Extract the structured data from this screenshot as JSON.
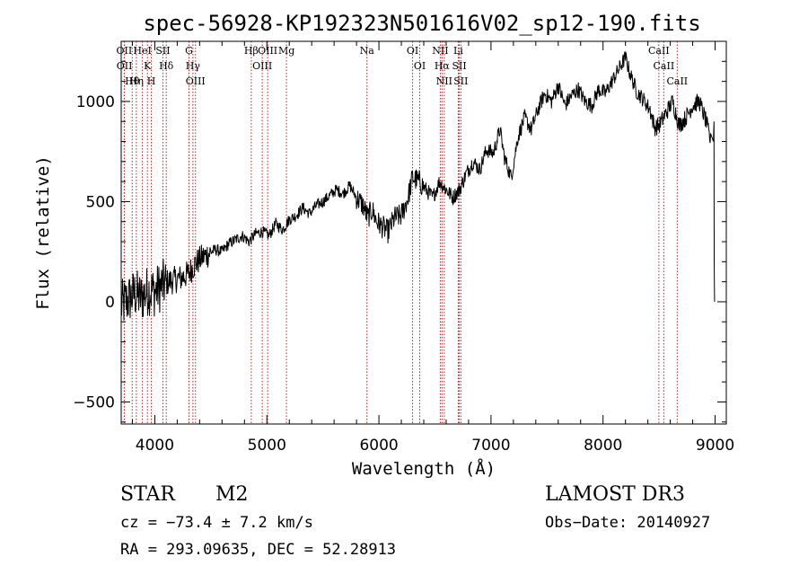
{
  "chart_data": {
    "type": "line",
    "title": "spec-56928-KP192323N501616V02_sp12-190.fits",
    "xlabel": "Wavelength (Å)",
    "ylabel": "Flux (relative)",
    "xlim": [
      3700,
      9100
    ],
    "ylim": [
      -610,
      1300
    ],
    "x_ticks": [
      4000,
      5000,
      6000,
      7000,
      8000,
      9000
    ],
    "y_ticks": [
      -500,
      0,
      500,
      1000
    ],
    "grid": false,
    "series": [
      {
        "name": "flux",
        "x": [
          3700,
          3760,
          3820,
          3880,
          3940,
          4000,
          4060,
          4120,
          4180,
          4240,
          4300,
          4360,
          4420,
          4480,
          4540,
          4600,
          4660,
          4720,
          4780,
          4840,
          4900,
          4960,
          5020,
          5080,
          5140,
          5200,
          5260,
          5320,
          5380,
          5440,
          5500,
          5560,
          5620,
          5680,
          5740,
          5800,
          5860,
          5900,
          5940,
          5980,
          6020,
          6080,
          6140,
          6200,
          6260,
          6300,
          6360,
          6420,
          6480,
          6540,
          6600,
          6660,
          6720,
          6780,
          6840,
          6900,
          6960,
          7020,
          7080,
          7120,
          7180,
          7240,
          7300,
          7360,
          7420,
          7480,
          7540,
          7600,
          7660,
          7720,
          7780,
          7840,
          7900,
          7960,
          8020,
          8080,
          8140,
          8200,
          8240,
          8300,
          8360,
          8420,
          8460,
          8500,
          8560,
          8620,
          8680,
          8740,
          8800,
          8860,
          8920,
          8960,
          9000
        ],
        "y": [
          -20,
          10,
          40,
          20,
          60,
          50,
          80,
          100,
          110,
          120,
          140,
          190,
          220,
          240,
          260,
          250,
          290,
          310,
          330,
          300,
          340,
          350,
          330,
          390,
          360,
          410,
          430,
          470,
          440,
          480,
          500,
          530,
          560,
          540,
          580,
          520,
          480,
          420,
          460,
          400,
          380,
          350,
          420,
          430,
          520,
          620,
          600,
          560,
          520,
          600,
          560,
          520,
          560,
          640,
          700,
          660,
          760,
          740,
          860,
          720,
          620,
          820,
          920,
          860,
          960,
          1040,
          1000,
          1080,
          980,
          1030,
          1060,
          1000,
          980,
          1060,
          1040,
          1100,
          1160,
          1220,
          1140,
          1050,
          1010,
          960,
          870,
          880,
          940,
          1000,
          880,
          920,
          980,
          1000,
          900,
          800,
          0
        ]
      }
    ],
    "lines": [
      {
        "label": "Hθ",
        "wavelength": 3798
      },
      {
        "label": "OII",
        "wavelength": 3727
      },
      {
        "label": "OII",
        "wavelength": 3729
      },
      {
        "label": "HeI",
        "wavelength": 3889
      },
      {
        "label": "Hη",
        "wavelength": 3835
      },
      {
        "label": "K",
        "wavelength": 3934
      },
      {
        "label": "H",
        "wavelength": 3969
      },
      {
        "label": "SII",
        "wavelength": 4072
      },
      {
        "label": "Hδ",
        "wavelength": 4102
      },
      {
        "label": "OIII",
        "wavelength": 4363
      },
      {
        "label": "Hγ",
        "wavelength": 4340
      },
      {
        "label": "G",
        "wavelength": 4305
      },
      {
        "label": "Hβ",
        "wavelength": 4861
      },
      {
        "label": "OIII",
        "wavelength": 5007
      },
      {
        "label": "OIII",
        "wavelength": 4959
      },
      {
        "label": "Mg",
        "wavelength": 5175
      },
      {
        "label": "Na",
        "wavelength": 5893
      },
      {
        "label": "OI",
        "wavelength": 6300
      },
      {
        "label": "OI",
        "wavelength": 6364
      },
      {
        "label": "Hα",
        "wavelength": 6563
      },
      {
        "label": "NII",
        "wavelength": 6548
      },
      {
        "label": "NII",
        "wavelength": 6583
      },
      {
        "label": "SII",
        "wavelength": 6717
      },
      {
        "label": "SII",
        "wavelength": 6731
      },
      {
        "label": "Li",
        "wavelength": 6708
      },
      {
        "label": "CaII",
        "wavelength": 8542
      },
      {
        "label": "CaII",
        "wavelength": 8498
      },
      {
        "label": "CaII",
        "wavelength": 8662
      }
    ]
  },
  "info": {
    "type": "STAR",
    "class": "M2",
    "survey": "LAMOST DR3",
    "cz": "cz = −73.4 ± 7.2 km/s",
    "obs_date": "Obs−Date: 20140927",
    "radec": "RA = 293.09635, DEC =  52.28913"
  },
  "colors": {
    "line_marker": "#b22222",
    "spectrum": "#000000",
    "axes": "#000000"
  }
}
